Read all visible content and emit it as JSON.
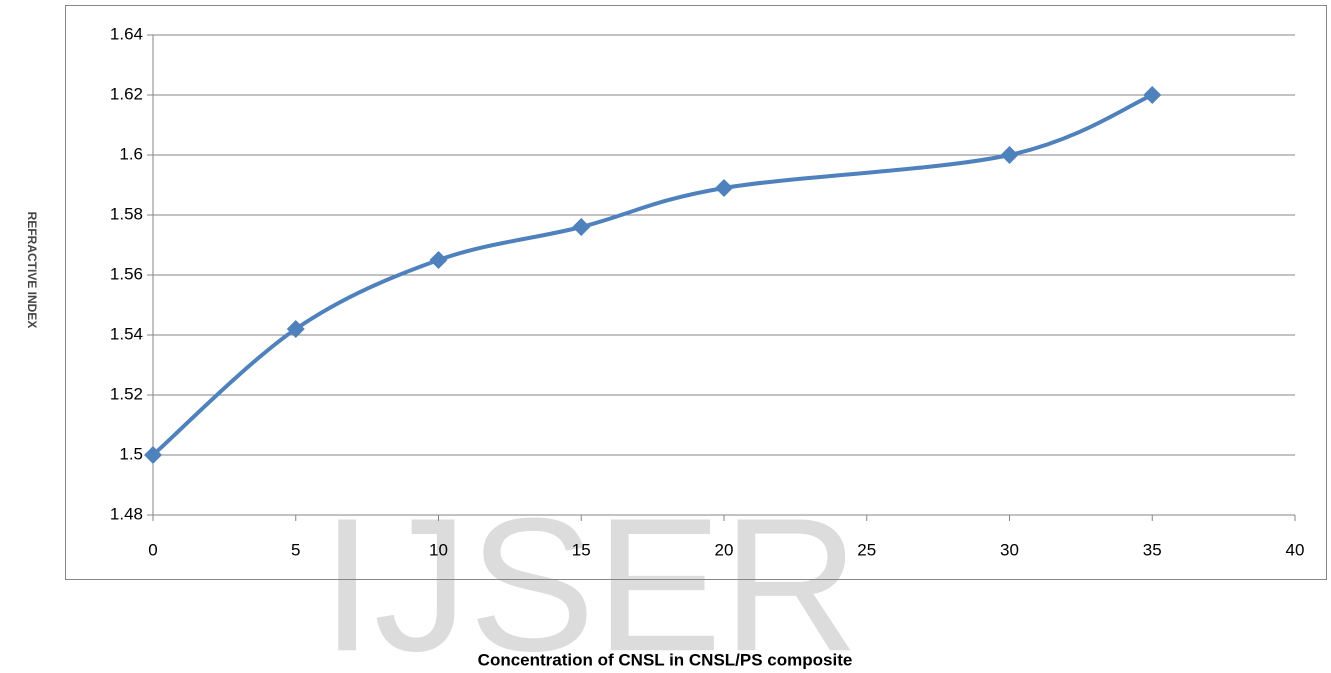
{
  "chart_data": {
    "type": "line",
    "watermark": "IJSER",
    "xlabel": "Concentration of CNSL in CNSL/PS composite",
    "ylabel": "REFRACTIVE INDEX",
    "grid": true,
    "series": [
      {
        "color": "#4f81bd",
        "marker": "diamond",
        "smooth": true,
        "x": [
          0,
          5,
          10,
          15,
          20,
          30,
          35
        ],
        "values": [
          1.5,
          1.542,
          1.565,
          1.576,
          1.589,
          1.6,
          1.62
        ]
      }
    ],
    "xlim": [
      0,
      40
    ],
    "xticks": [
      0,
      5,
      10,
      15,
      20,
      25,
      30,
      35,
      40
    ],
    "ylim": [
      1.48,
      1.64
    ],
    "yticks": [
      1.48,
      1.5,
      1.52,
      1.54,
      1.56,
      1.58,
      1.6,
      1.62,
      1.64
    ]
  }
}
